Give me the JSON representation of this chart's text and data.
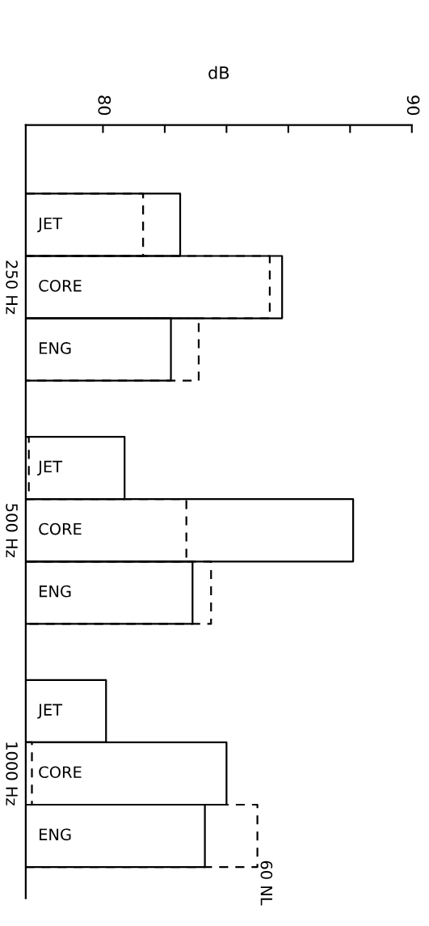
{
  "chart_data": {
    "type": "bar",
    "orientation": "horizontal",
    "xlabel": "dB",
    "categories": [
      "JET",
      "CORE",
      "ENG",
      "JET",
      "CORE",
      "ENG",
      "JET",
      "CORE",
      "ENG"
    ],
    "series": [
      {
        "color": "#000000",
        "line_style": "solid",
        "values": [
          82.5,
          85.8,
          82.2,
          80.7,
          88.1,
          82.9,
          80.1,
          84.0,
          83.3
        ]
      },
      {
        "color": "#000000",
        "line_style": "dashed",
        "values": [
          81.3,
          85.4,
          83.1,
          77.6,
          82.7,
          83.5,
          null,
          77.7,
          85.0
        ]
      }
    ],
    "xlim": [
      77.5,
      90
    ],
    "xticks": [
      80,
      {
        "value": 82,
        "label": null
      },
      {
        "value": 84,
        "label": null
      },
      {
        "value": 86,
        "label": null
      },
      {
        "value": 88,
        "label": null
      },
      90
    ],
    "annotations": [
      "250 Hz",
      "500 Hz",
      "1000 Hz",
      "60 NL"
    ],
    "grid": false
  }
}
